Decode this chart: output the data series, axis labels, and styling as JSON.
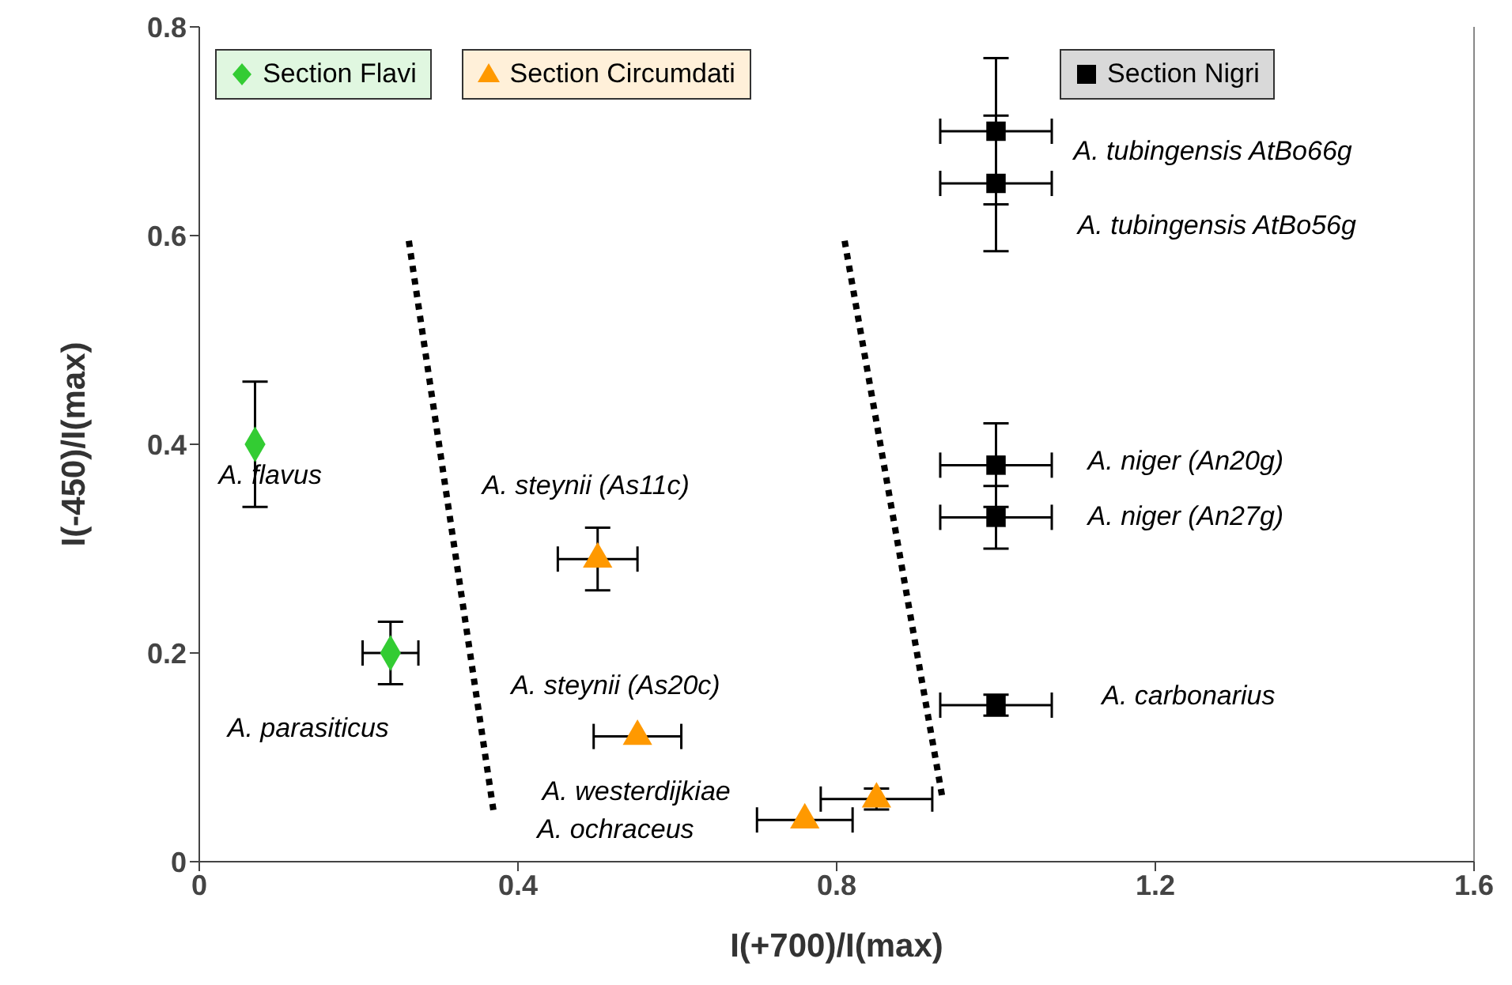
{
  "chart_data": {
    "type": "scatter",
    "xlabel": "I(+700)/I(max)",
    "ylabel": "I(-450)/I(max)",
    "xlim": [
      0,
      1.6
    ],
    "xticks": [
      0,
      0.4,
      0.8,
      1.2,
      1.6
    ],
    "ylim": [
      0,
      0.8
    ],
    "yticks": [
      0,
      0.2,
      0.4,
      0.6,
      0.8
    ],
    "grid": false,
    "legend": "top",
    "series": [
      {
        "name": "Section Flavi",
        "color": "#33cc33",
        "marker": "diamond",
        "x": [
          0.07,
          0.24
        ],
        "values": [
          0.4,
          0.2
        ],
        "errors": [
          0.06,
          0.03
        ],
        "xerrors": [
          null,
          0.035
        ]
      },
      {
        "name": "Section Circumdati",
        "color": "#ff9900",
        "marker": "triangle",
        "x": [
          0.5,
          0.55,
          0.85,
          0.76
        ],
        "values": [
          0.29,
          0.12,
          0.06,
          0.04
        ],
        "errors": [
          0.03,
          null,
          0.01,
          null
        ],
        "xerrors": [
          0.05,
          0.055,
          0.07,
          0.06
        ]
      },
      {
        "name": "Section Nigri",
        "color": "#000000",
        "marker": "square",
        "x": [
          1.0,
          1.0,
          1.0,
          1.0,
          1.0
        ],
        "values": [
          0.7,
          0.65,
          0.38,
          0.33,
          0.15
        ],
        "errors": [
          0.07,
          0.065,
          0.04,
          0.03,
          0.01
        ],
        "xerrors": [
          0.07,
          0.07,
          0.07,
          0.07,
          0.07
        ]
      },
      {
        "type": "line",
        "color": "#000000",
        "line_style": "dotted",
        "marker": "none",
        "x": [
          0.263,
          0.37
        ],
        "values": [
          0.595,
          0.045
        ]
      },
      {
        "type": "line",
        "color": "#000000",
        "line_style": "dotted",
        "marker": "none",
        "x": [
          0.81,
          0.933
        ],
        "values": [
          0.595,
          0.06
        ]
      }
    ],
    "annotations": [
      {
        "text": "A. flavus",
        "x": 0.07,
        "y": 0.4
      },
      {
        "text": "A. parasiticus",
        "x": 0.24,
        "y": 0.2
      },
      {
        "text": "A. steynii  (As11c)",
        "x": 0.5,
        "y": 0.29
      },
      {
        "text": "A. steynii (As20c)",
        "x": 0.55,
        "y": 0.12
      },
      "A. westerdijkiae",
      "A. ochraceus",
      {
        "text": "A. tubingensis AtBo66g",
        "x": 1.0,
        "y": 0.7
      },
      "A. tubingensis AtBo56g",
      "A. niger (An20g)",
      "A. niger  (An27g)",
      "A. carbonarius"
    ]
  }
}
